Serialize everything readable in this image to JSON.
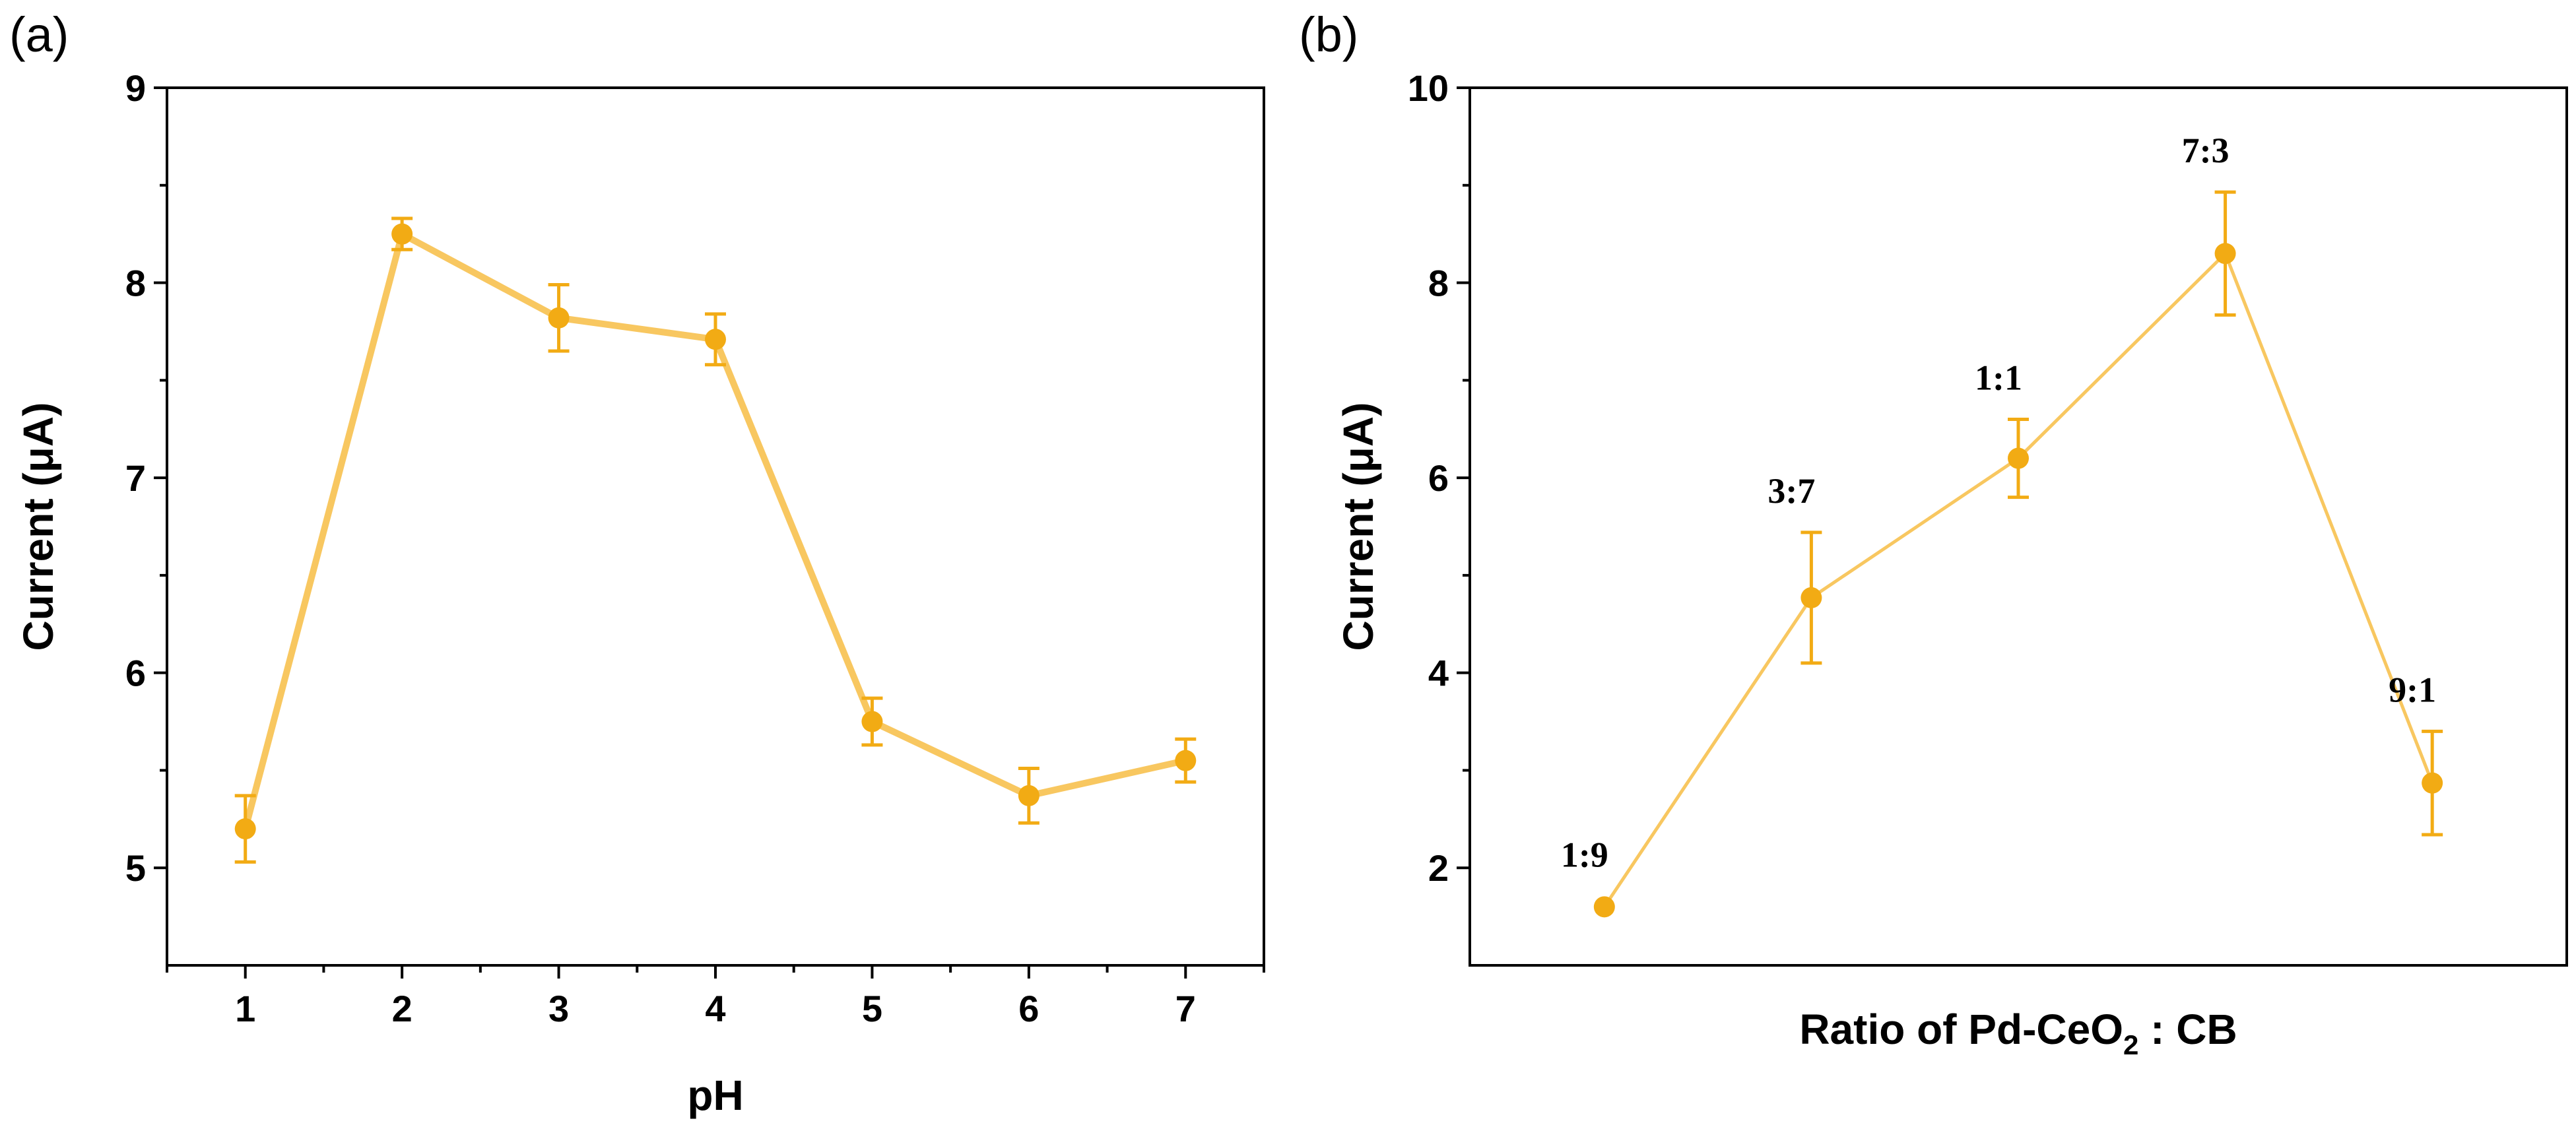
{
  "colors": {
    "series_line": "#f8c760",
    "series_marker": "#f2ab14",
    "axis": "#000000",
    "background": "#ffffff"
  },
  "chart_data": [
    {
      "panel_label": "(a)",
      "type": "line",
      "title": "",
      "xlabel": "pH",
      "ylabel": "Current (μA)",
      "x": [
        1,
        2,
        3,
        4,
        5,
        6,
        7
      ],
      "x_tick_labels": [
        "1",
        "2",
        "3",
        "4",
        "5",
        "6",
        "7"
      ],
      "xlim": [
        0.5,
        7.5
      ],
      "ylim": [
        4.5,
        9
      ],
      "y_ticks": [
        5,
        6,
        7,
        8,
        9
      ],
      "y_tick_labels": [
        "5",
        "6",
        "7",
        "8",
        "9"
      ],
      "series": [
        {
          "name": "Current",
          "values": [
            5.2,
            8.25,
            7.82,
            7.71,
            5.75,
            5.37,
            5.55
          ],
          "errors": [
            0.17,
            0.08,
            0.17,
            0.13,
            0.12,
            0.14,
            0.11
          ]
        }
      ],
      "grid": false,
      "legend": "none"
    },
    {
      "panel_label": "(b)",
      "type": "line",
      "title": "",
      "xlabel_main": "Ratio of Pd-CeO",
      "xlabel_subscript": "2",
      "xlabel_tail": " : CB",
      "ylabel": "Current (μA)",
      "x": [
        1,
        2,
        3,
        4,
        5
      ],
      "point_labels": [
        "1:9",
        "3:7",
        "1:1",
        "7:3",
        "9:1"
      ],
      "xlim": [
        0.35,
        5.65
      ],
      "ylim": [
        1,
        10
      ],
      "y_ticks": [
        2,
        4,
        6,
        8,
        10
      ],
      "y_tick_labels": [
        "2",
        "4",
        "6",
        "8",
        "10"
      ],
      "series": [
        {
          "name": "Current",
          "values": [
            1.6,
            4.77,
            6.2,
            8.3,
            2.87
          ],
          "errors": [
            0.0,
            0.67,
            0.4,
            0.63,
            0.53
          ]
        }
      ],
      "grid": false,
      "legend": "none"
    }
  ]
}
